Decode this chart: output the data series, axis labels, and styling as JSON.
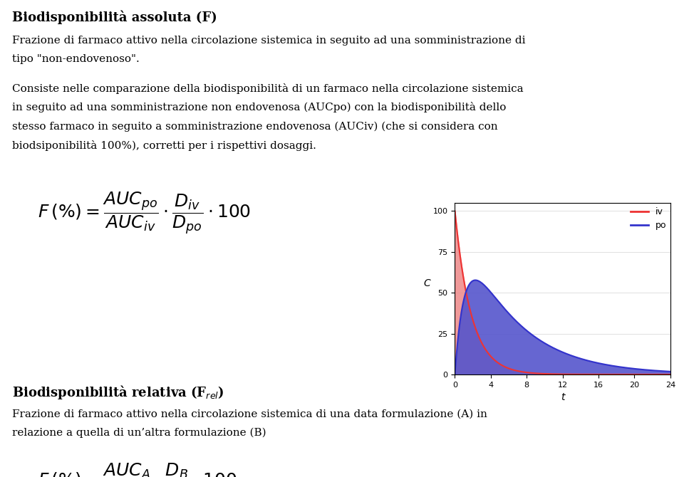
{
  "bg_color": "#ffffff",
  "title1": "Biodisponibilità assoluta (F)",
  "title2": "Biodisponibilità relativa (F$_{rel}$)",
  "plot_xlim": [
    0,
    24
  ],
  "plot_ylim": [
    0,
    105
  ],
  "plot_xticks": [
    0,
    4,
    8,
    12,
    16,
    20,
    24
  ],
  "plot_yticks": [
    0,
    25,
    50,
    75,
    100
  ],
  "plot_xlabel": "t",
  "plot_ylabel": "C",
  "iv_color": "#ee3333",
  "po_color": "#3333cc",
  "iv_fill_color": "#ee8888",
  "po_fill_color": "#5555cc",
  "legend_iv": "iv",
  "legend_po": "po",
  "iv_alpha": 0.85,
  "po_alpha": 0.9,
  "iv_ka": 0.0,
  "iv_ke": 0.55,
  "iv_C0": 100,
  "po_ka": 0.9,
  "po_ke": 0.17,
  "po_C0": 85
}
